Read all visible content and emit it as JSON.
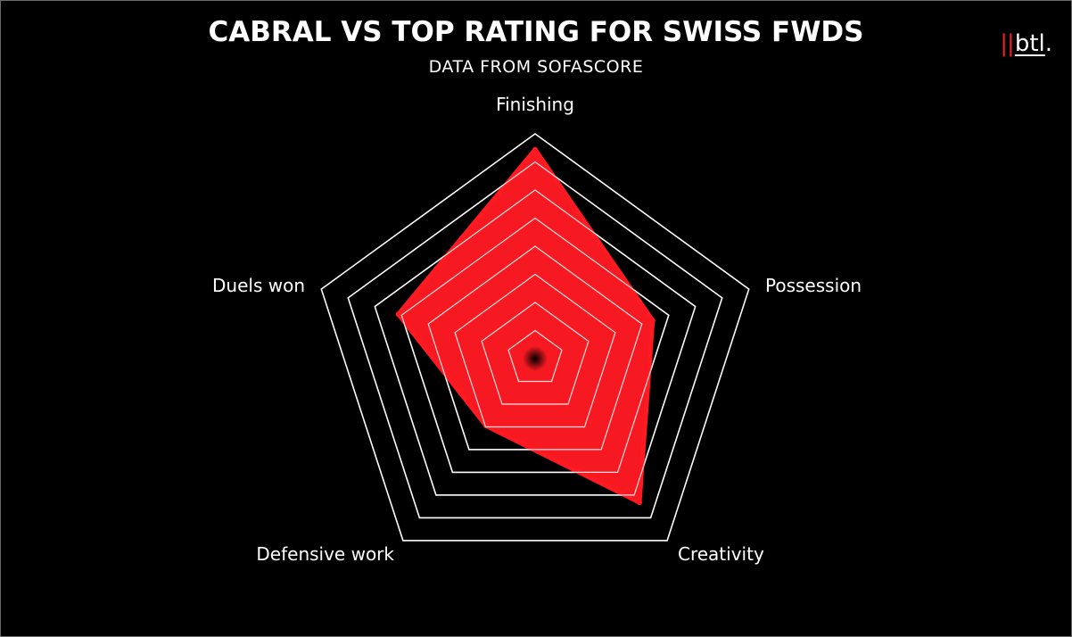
{
  "header": {
    "title": "CABRAL VS TOP RATING FOR SWISS FWDS",
    "subtitle": "DATA FROM SOFASCORE"
  },
  "brand": {
    "bars": "||",
    "text": "btl",
    "dot": "."
  },
  "colors": {
    "background": "#000000",
    "fill": "#ff1a22",
    "grid": "#ffffff",
    "accent": "#e3242b"
  },
  "chart_data": {
    "type": "radar",
    "title": "CABRAL VS TOP RATING FOR SWISS FWDS",
    "subtitle": "DATA FROM SOFASCORE",
    "axes": [
      "Finishing",
      "Possession",
      "Creativity",
      "Defensive work",
      "Duels won"
    ],
    "rings": 8,
    "range": [
      0,
      1
    ],
    "series": [
      {
        "values": [
          0.93,
          0.55,
          0.79,
          0.37,
          0.64
        ]
      }
    ]
  }
}
